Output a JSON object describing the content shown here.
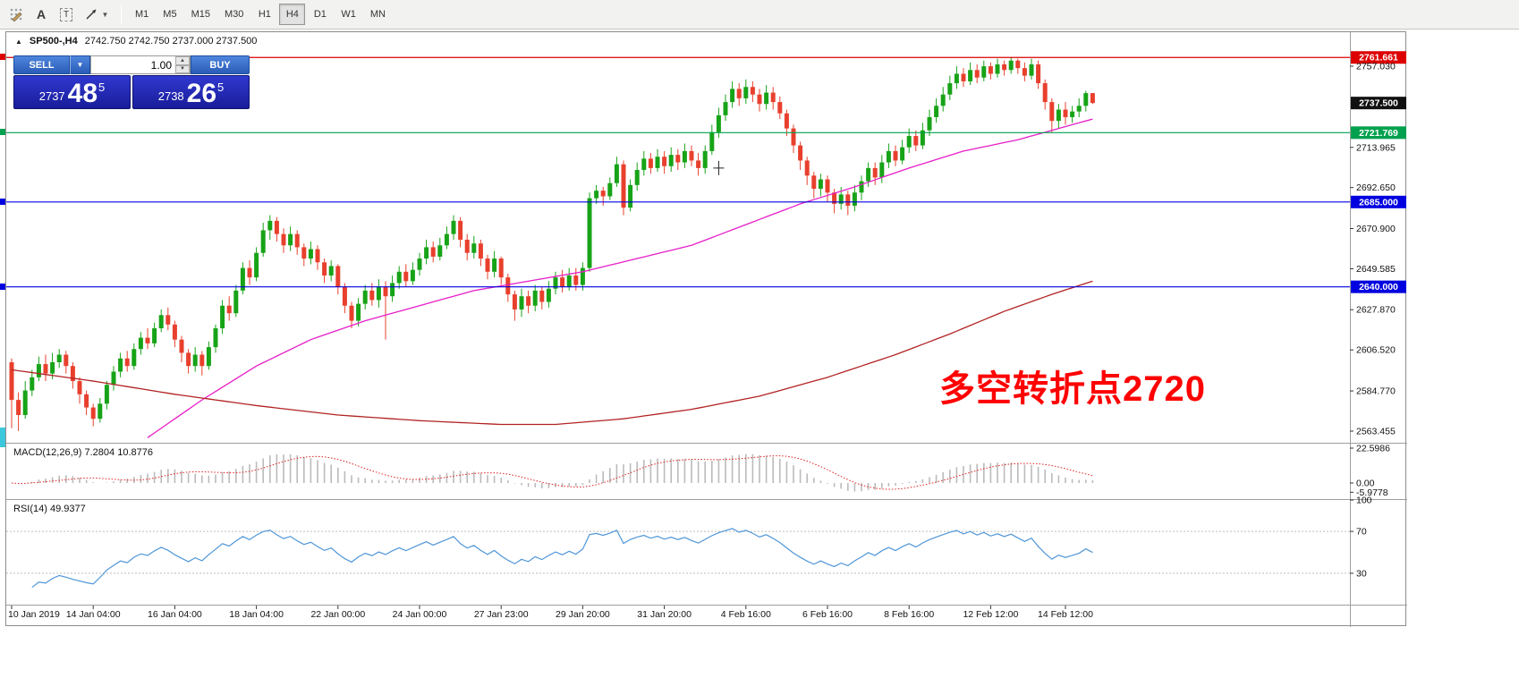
{
  "toolbar": {
    "tools": [
      {
        "id": "grid-draw",
        "label": ""
      },
      {
        "id": "text-label",
        "label": "A"
      },
      {
        "id": "text-box",
        "label": "T"
      },
      {
        "id": "arrow-line",
        "label": "",
        "has_dropdown": true
      }
    ],
    "timeframes": [
      {
        "label": "M1",
        "active": false
      },
      {
        "label": "M5",
        "active": false
      },
      {
        "label": "M15",
        "active": false
      },
      {
        "label": "M30",
        "active": false
      },
      {
        "label": "H1",
        "active": false
      },
      {
        "label": "H4",
        "active": true
      },
      {
        "label": "D1",
        "active": false
      },
      {
        "label": "W1",
        "active": false
      },
      {
        "label": "MN",
        "active": false
      }
    ]
  },
  "window": {
    "collapse_arrow": "▲",
    "symbol": "SP500-,H4",
    "ohlc": "2742.750 2742.750 2737.000 2737.500"
  },
  "trade_panel": {
    "sell_label": "SELL",
    "buy_label": "BUY",
    "volume": "1.00",
    "bid": {
      "prefix": "2737",
      "big": "48",
      "sup": "5"
    },
    "ask": {
      "prefix": "2738",
      "big": "26",
      "sup": "5"
    }
  },
  "annotation": {
    "text": "多空转折点2720",
    "color": "#ff0000"
  },
  "hlines": [
    {
      "price": 2761.661,
      "label": "2761.661",
      "color": "#dd0000",
      "type": "line"
    },
    {
      "price": 2737.5,
      "label": "2737.500",
      "color": "#111111",
      "type": "badge"
    },
    {
      "price": 2721.769,
      "label": "2721.769",
      "color": "#00a14e",
      "type": "line"
    },
    {
      "price": 2685.0,
      "label": "2685.000",
      "color": "#0000e0",
      "type": "line"
    },
    {
      "price": 2640.0,
      "label": "2640.000",
      "color": "#0000e0",
      "type": "line"
    }
  ],
  "price_axis": {
    "ticks": [
      2757.03,
      2713.965,
      2692.65,
      2670.9,
      2649.585,
      2627.87,
      2606.52,
      2584.77,
      2563.455
    ]
  },
  "time_axis": {
    "labels": [
      {
        "text": "10 Jan 2019",
        "index": 0
      },
      {
        "text": "14 Jan 04:00",
        "index": 12
      },
      {
        "text": "16 Jan 04:00",
        "index": 24
      },
      {
        "text": "18 Jan 04:00",
        "index": 36
      },
      {
        "text": "22 Jan 00:00",
        "index": 48
      },
      {
        "text": "24 Jan 00:00",
        "index": 60
      },
      {
        "text": "27 Jan 23:00",
        "index": 72
      },
      {
        "text": "29 Jan 20:00",
        "index": 84
      },
      {
        "text": "31 Jan 20:00",
        "index": 96
      },
      {
        "text": "4 Feb 16:00",
        "index": 108
      },
      {
        "text": "6 Feb 16:00",
        "index": 120
      },
      {
        "text": "8 Feb 16:00",
        "index": 132
      },
      {
        "text": "12 Feb 12:00",
        "index": 144
      },
      {
        "text": "14 Feb 12:00",
        "index": 155
      }
    ]
  },
  "macd_panel": {
    "title": "MACD(12,26,9)",
    "value1": "7.2804",
    "value2": "10.8776",
    "ticks": [
      {
        "value": 22.5986,
        "label": "22.5986"
      },
      {
        "value": 0,
        "label": "0.00"
      },
      {
        "value": -5.9778,
        "label": "-5.9778"
      }
    ]
  },
  "rsi_panel": {
    "title": "RSI(14)",
    "value": "49.9377",
    "levels": [
      70,
      30
    ],
    "ticks": [
      {
        "value": 100,
        "label": "100"
      },
      {
        "value": 70,
        "label": "70"
      },
      {
        "value": 30,
        "label": "30"
      }
    ]
  },
  "ui": {
    "edge_marker_color": "#3cc8dc"
  },
  "chart_data": {
    "type": "candlestick",
    "symbol": "SP500-",
    "timeframe": "H4",
    "title": "SP500- H4 candlestick chart with MACD(12,26,9) and RSI(14)",
    "crosshair": {
      "index": 104,
      "price": 2703
    },
    "colors": {
      "up": "#17a317",
      "down": "#e8402d",
      "ma_fast": "#e61ec8",
      "ma_slow": "#b22222",
      "macd_hist": "#bbbbbb",
      "macd_signal": "#e02020",
      "rsi": "#4f96d8"
    },
    "ohlc": [
      [
        2600,
        2602,
        2565,
        2580
      ],
      [
        2580,
        2584,
        2563.5,
        2572
      ],
      [
        2572,
        2590,
        2570,
        2585
      ],
      [
        2585,
        2596,
        2582,
        2592
      ],
      [
        2592,
        2603,
        2590,
        2599
      ],
      [
        2599,
        2604,
        2590,
        2594
      ],
      [
        2594,
        2605,
        2591,
        2600
      ],
      [
        2600,
        2607,
        2597,
        2604
      ],
      [
        2604,
        2606,
        2594,
        2598
      ],
      [
        2598,
        2600,
        2586,
        2590
      ],
      [
        2590,
        2592,
        2578,
        2583
      ],
      [
        2583,
        2585,
        2572,
        2576
      ],
      [
        2576,
        2578,
        2566,
        2570
      ],
      [
        2570,
        2581,
        2568,
        2578
      ],
      [
        2578,
        2590,
        2575,
        2588
      ],
      [
        2588,
        2598,
        2585,
        2595
      ],
      [
        2595,
        2605,
        2592,
        2602
      ],
      [
        2602,
        2606,
        2595,
        2598
      ],
      [
        2598,
        2610,
        2596,
        2607
      ],
      [
        2607,
        2616,
        2604,
        2613
      ],
      [
        2613,
        2618,
        2607,
        2610
      ],
      [
        2610,
        2621,
        2608,
        2618
      ],
      [
        2618,
        2628,
        2616,
        2625
      ],
      [
        2625,
        2629,
        2617,
        2620
      ],
      [
        2620,
        2622,
        2608,
        2612
      ],
      [
        2612,
        2614,
        2600,
        2605
      ],
      [
        2605,
        2607,
        2594,
        2598
      ],
      [
        2598,
        2608,
        2595,
        2604
      ],
      [
        2604,
        2606,
        2593,
        2598
      ],
      [
        2598,
        2611,
        2596,
        2608
      ],
      [
        2608,
        2620,
        2605,
        2618
      ],
      [
        2618,
        2633,
        2615,
        2630
      ],
      [
        2630,
        2635,
        2622,
        2626
      ],
      [
        2626,
        2641,
        2624,
        2638
      ],
      [
        2638,
        2653,
        2636,
        2650
      ],
      [
        2650,
        2654,
        2641,
        2645
      ],
      [
        2645,
        2661,
        2643,
        2658
      ],
      [
        2658,
        2674,
        2656,
        2670
      ],
      [
        2670,
        2678,
        2665,
        2675
      ],
      [
        2675,
        2677,
        2664,
        2668
      ],
      [
        2668,
        2671,
        2658,
        2662
      ],
      [
        2662,
        2672,
        2659,
        2668
      ],
      [
        2668,
        2670,
        2657,
        2661
      ],
      [
        2661,
        2663,
        2651,
        2655
      ],
      [
        2655,
        2664,
        2652,
        2660
      ],
      [
        2660,
        2662,
        2649,
        2653
      ],
      [
        2653,
        2655,
        2642,
        2646
      ],
      [
        2646,
        2654,
        2643,
        2651
      ],
      [
        2651,
        2652,
        2636,
        2640
      ],
      [
        2640,
        2642,
        2626,
        2630
      ],
      [
        2630,
        2632,
        2618,
        2622
      ],
      [
        2622,
        2634,
        2619,
        2631
      ],
      [
        2631,
        2641,
        2628,
        2638
      ],
      [
        2638,
        2642,
        2630,
        2633
      ],
      [
        2633,
        2644,
        2629,
        2640
      ],
      [
        2640,
        2643,
        2612,
        2635
      ],
      [
        2635,
        2646,
        2632,
        2642
      ],
      [
        2642,
        2651,
        2639,
        2648
      ],
      [
        2648,
        2652,
        2640,
        2643
      ],
      [
        2643,
        2653,
        2641,
        2649
      ],
      [
        2649,
        2658,
        2646,
        2655
      ],
      [
        2655,
        2665,
        2652,
        2661
      ],
      [
        2661,
        2664,
        2653,
        2656
      ],
      [
        2656,
        2666,
        2654,
        2662
      ],
      [
        2662,
        2672,
        2660,
        2668
      ],
      [
        2668,
        2678,
        2665,
        2675
      ],
      [
        2675,
        2677,
        2661,
        2665
      ],
      [
        2665,
        2668,
        2654,
        2658
      ],
      [
        2658,
        2667,
        2655,
        2663
      ],
      [
        2663,
        2665,
        2651,
        2655
      ],
      [
        2655,
        2657,
        2644,
        2648
      ],
      [
        2648,
        2659,
        2645,
        2655
      ],
      [
        2655,
        2656,
        2641,
        2645
      ],
      [
        2645,
        2647,
        2632,
        2636
      ],
      [
        2636,
        2638,
        2622,
        2628
      ],
      [
        2628,
        2639,
        2624,
        2635
      ],
      [
        2635,
        2638,
        2626,
        2630
      ],
      [
        2630,
        2641,
        2627,
        2638
      ],
      [
        2638,
        2640,
        2628,
        2632
      ],
      [
        2632,
        2643,
        2629,
        2639
      ],
      [
        2639,
        2648,
        2636,
        2645
      ],
      [
        2645,
        2649,
        2637,
        2640
      ],
      [
        2640,
        2650,
        2638,
        2646
      ],
      [
        2646,
        2650,
        2638,
        2641
      ],
      [
        2641,
        2653,
        2638,
        2650
      ],
      [
        2650,
        2690,
        2648,
        2687
      ],
      [
        2687,
        2694,
        2684,
        2691
      ],
      [
        2691,
        2693,
        2683,
        2688
      ],
      [
        2688,
        2698,
        2686,
        2695
      ],
      [
        2695,
        2709,
        2693,
        2705
      ],
      [
        2705,
        2707,
        2678,
        2682
      ],
      [
        2682,
        2697,
        2680,
        2694
      ],
      [
        2694,
        2706,
        2691,
        2702
      ],
      [
        2702,
        2712,
        2699,
        2708
      ],
      [
        2708,
        2711,
        2700,
        2703
      ],
      [
        2703,
        2713,
        2701,
        2709
      ],
      [
        2709,
        2712,
        2700,
        2704
      ],
      [
        2704,
        2714,
        2701,
        2710
      ],
      [
        2710,
        2713,
        2702,
        2706
      ],
      [
        2706,
        2716,
        2703,
        2712
      ],
      [
        2712,
        2715,
        2704,
        2707
      ],
      [
        2707,
        2711,
        2699,
        2703
      ],
      [
        2703,
        2715,
        2700,
        2712
      ],
      [
        2712,
        2726,
        2710,
        2722
      ],
      [
        2722,
        2735,
        2719,
        2731
      ],
      [
        2731,
        2742,
        2728,
        2738
      ],
      [
        2738,
        2749,
        2735,
        2745
      ],
      [
        2745,
        2748,
        2736,
        2740
      ],
      [
        2740,
        2750,
        2737,
        2746
      ],
      [
        2746,
        2749,
        2738,
        2742
      ],
      [
        2742,
        2745,
        2733,
        2737
      ],
      [
        2737,
        2747,
        2734,
        2743
      ],
      [
        2743,
        2746,
        2734,
        2738
      ],
      [
        2738,
        2741,
        2729,
        2732
      ],
      [
        2732,
        2734,
        2720,
        2724
      ],
      [
        2724,
        2726,
        2711,
        2715
      ],
      [
        2715,
        2717,
        2702,
        2707
      ],
      [
        2707,
        2709,
        2694,
        2699
      ],
      [
        2699,
        2701,
        2687,
        2692
      ],
      [
        2692,
        2700,
        2688,
        2697
      ],
      [
        2697,
        2699,
        2685,
        2690
      ],
      [
        2690,
        2692,
        2679,
        2684
      ],
      [
        2684,
        2693,
        2681,
        2689
      ],
      [
        2689,
        2691,
        2678,
        2683
      ],
      [
        2683,
        2694,
        2680,
        2690
      ],
      [
        2690,
        2699,
        2686,
        2696
      ],
      [
        2696,
        2706,
        2693,
        2703
      ],
      [
        2703,
        2706,
        2694,
        2698
      ],
      [
        2698,
        2710,
        2695,
        2706
      ],
      [
        2706,
        2716,
        2703,
        2712
      ],
      [
        2712,
        2715,
        2704,
        2707
      ],
      [
        2707,
        2718,
        2705,
        2714
      ],
      [
        2714,
        2724,
        2711,
        2720
      ],
      [
        2720,
        2723,
        2712,
        2715
      ],
      [
        2715,
        2727,
        2713,
        2723
      ],
      [
        2723,
        2734,
        2720,
        2730
      ],
      [
        2730,
        2740,
        2727,
        2736
      ],
      [
        2736,
        2746,
        2733,
        2742
      ],
      [
        2742,
        2752,
        2739,
        2748
      ],
      [
        2748,
        2757,
        2745,
        2753
      ],
      [
        2753,
        2756,
        2746,
        2749
      ],
      [
        2749,
        2759,
        2747,
        2755
      ],
      [
        2755,
        2758,
        2748,
        2751
      ],
      [
        2751,
        2760,
        2749,
        2757
      ],
      [
        2757,
        2759,
        2750,
        2753
      ],
      [
        2753,
        2761,
        2751,
        2758
      ],
      [
        2758,
        2760,
        2752,
        2755
      ],
      [
        2755,
        2761.6,
        2753,
        2760
      ],
      [
        2760,
        2761,
        2753,
        2756
      ],
      [
        2756,
        2759,
        2749,
        2752
      ],
      [
        2752,
        2761,
        2750,
        2758
      ],
      [
        2758,
        2760,
        2745,
        2748
      ],
      [
        2748,
        2750,
        2734,
        2738
      ],
      [
        2738,
        2740,
        2722,
        2728
      ],
      [
        2728,
        2737,
        2724,
        2734
      ],
      [
        2734,
        2738,
        2726,
        2730
      ],
      [
        2730,
        2736,
        2727,
        2733
      ],
      [
        2733,
        2740,
        2730,
        2736
      ],
      [
        2736,
        2744,
        2733,
        2742.75
      ],
      [
        2742.75,
        2742.75,
        2737,
        2737.5
      ]
    ],
    "ma_fast_anchors": [
      [
        20,
        2560
      ],
      [
        28,
        2580
      ],
      [
        36,
        2598
      ],
      [
        44,
        2612
      ],
      [
        52,
        2622
      ],
      [
        60,
        2630
      ],
      [
        68,
        2638
      ],
      [
        76,
        2643
      ],
      [
        84,
        2648
      ],
      [
        92,
        2655
      ],
      [
        100,
        2662
      ],
      [
        108,
        2673
      ],
      [
        116,
        2684
      ],
      [
        124,
        2693
      ],
      [
        132,
        2703
      ],
      [
        140,
        2712
      ],
      [
        148,
        2718
      ],
      [
        154,
        2724
      ],
      [
        159,
        2729
      ]
    ],
    "ma_slow_anchors": [
      [
        0,
        2596
      ],
      [
        12,
        2590
      ],
      [
        24,
        2583
      ],
      [
        36,
        2577
      ],
      [
        48,
        2572
      ],
      [
        60,
        2569
      ],
      [
        72,
        2567
      ],
      [
        80,
        2567
      ],
      [
        90,
        2570
      ],
      [
        100,
        2575
      ],
      [
        110,
        2582
      ],
      [
        120,
        2592
      ],
      [
        130,
        2604
      ],
      [
        138,
        2615
      ],
      [
        146,
        2627
      ],
      [
        153,
        2636
      ],
      [
        159,
        2643
      ]
    ]
  }
}
